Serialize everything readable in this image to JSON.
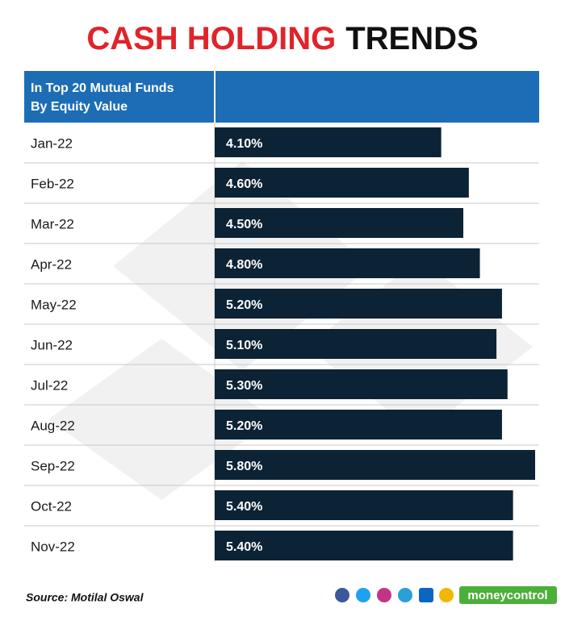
{
  "chart_data": {
    "type": "bar",
    "orientation": "horizontal",
    "title": [
      "CASH HOLDING",
      "TRENDS"
    ],
    "title_colors": [
      "#e1232a",
      "#111111"
    ],
    "header": [
      "In Top 20 Mutual Funds",
      "By Equity Value"
    ],
    "header_color": "#1c6db5",
    "categories": [
      "Jan-22",
      "Feb-22",
      "Mar-22",
      "Apr-22",
      "May-22",
      "Jun-22",
      "Jul-22",
      "Aug-22",
      "Sep-22",
      "Oct-22",
      "Nov-22"
    ],
    "values": [
      4.1,
      4.6,
      4.5,
      4.8,
      5.2,
      5.1,
      5.3,
      5.2,
      5.8,
      5.4,
      5.4
    ],
    "value_labels": [
      "4.10%",
      "4.60%",
      "4.50%",
      "4.80%",
      "5.20%",
      "5.10%",
      "5.30%",
      "5.20%",
      "5.80%",
      "5.40%",
      "5.40%"
    ],
    "color": "#0c2335",
    "source": "Source: Motilal Oswal",
    "brand": "moneycontrol"
  }
}
